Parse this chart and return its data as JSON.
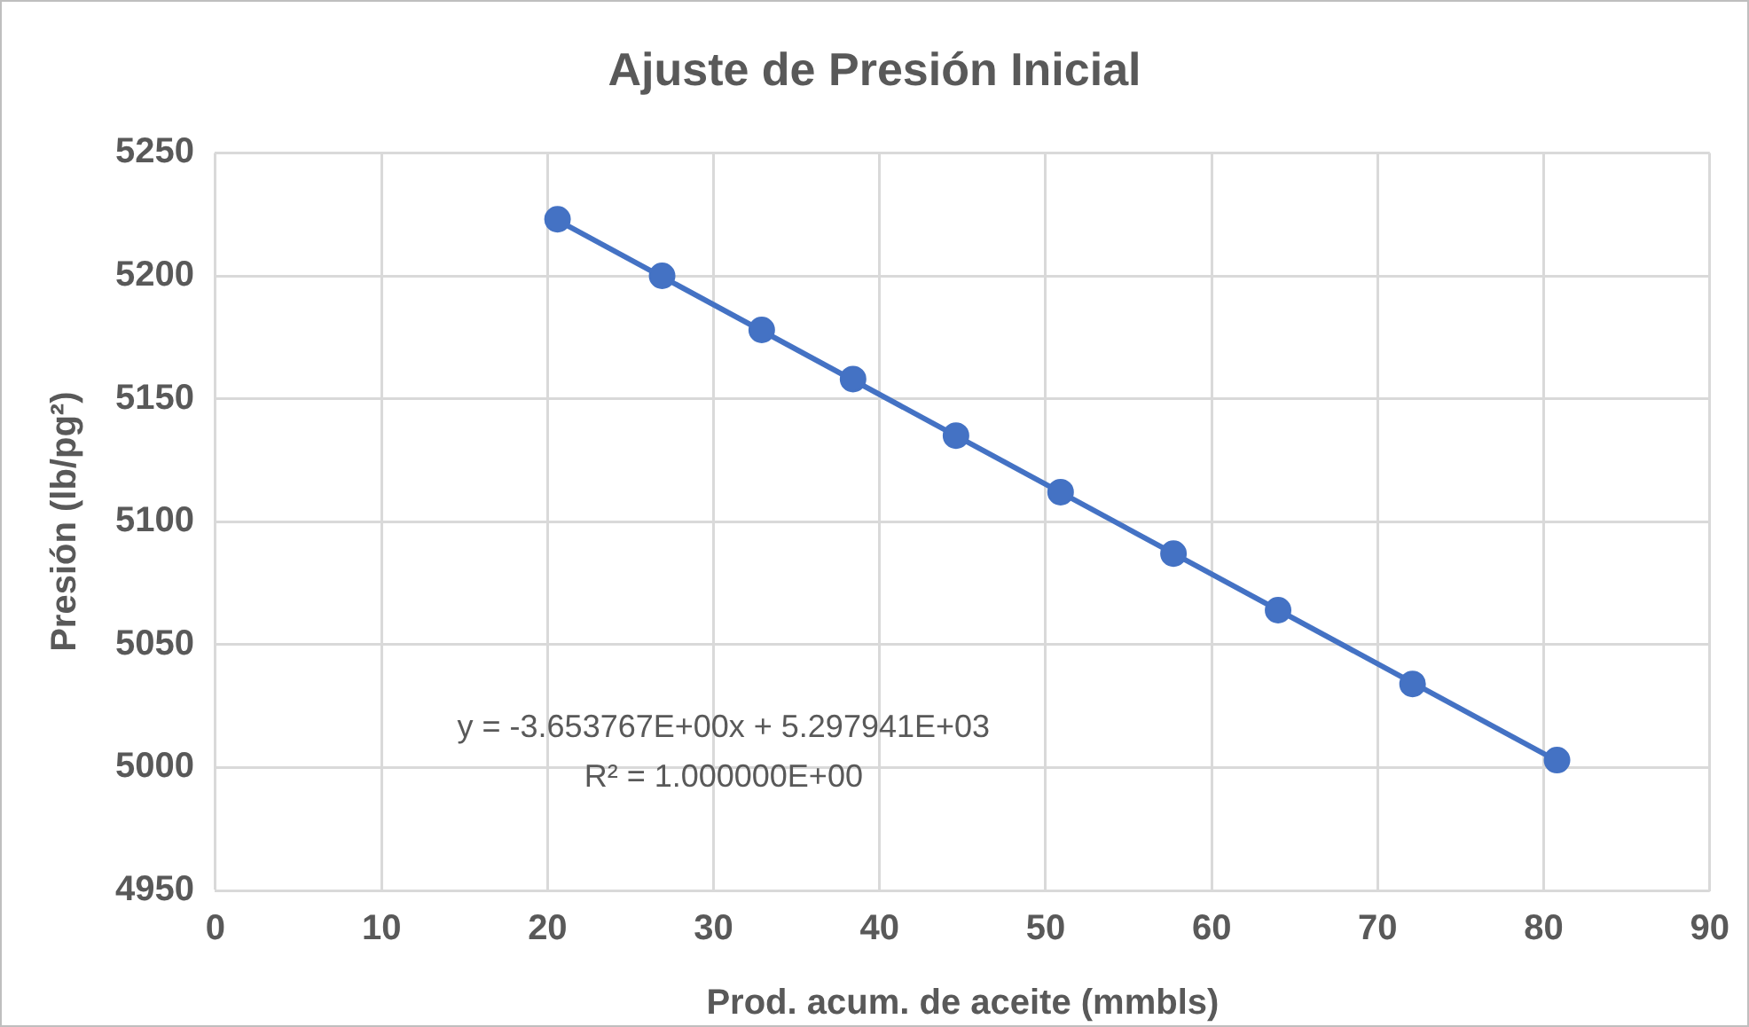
{
  "chart_data": {
    "type": "scatter",
    "title": "Ajuste de Presión Inicial",
    "xlabel": "Prod. acum. de aceite (mmbls)",
    "ylabel": "Presión (lb/pg²)",
    "xlim": [
      0,
      90
    ],
    "xticks": [
      0,
      10,
      20,
      30,
      40,
      50,
      60,
      70,
      80,
      90
    ],
    "ylim": [
      4950,
      5250
    ],
    "yticks": [
      4950,
      5000,
      5050,
      5100,
      5150,
      5200,
      5250
    ],
    "grid": true,
    "legend": false,
    "marker": "circle",
    "series": [
      {
        "type": "scatter",
        "color": "#4472c4",
        "x": [
          20.6,
          26.9,
          32.9,
          38.4,
          44.6,
          50.9,
          57.7,
          64.0,
          72.1,
          80.8
        ],
        "values": [
          5223,
          5200,
          5178,
          5158,
          5135,
          5112,
          5087,
          5064,
          5034,
          5003
        ]
      },
      {
        "type": "line",
        "color": "#4472c4",
        "marker": "none",
        "x": [
          20.6,
          80.8
        ],
        "values": [
          5222.6,
          5002.7
        ]
      }
    ],
    "annotations": [
      "y = -3.653767E+00x + 5.297941E+03",
      "R² = 1.000000E+00"
    ]
  }
}
